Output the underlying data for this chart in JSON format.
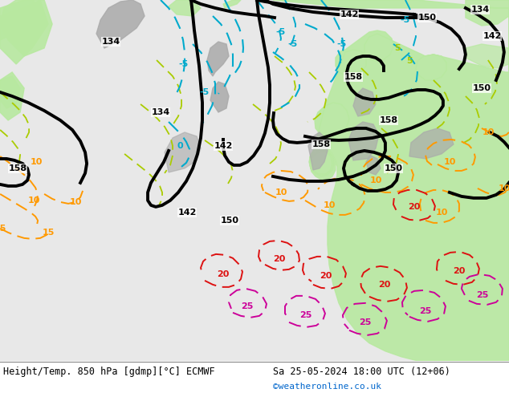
{
  "title_left": "Height/Temp. 850 hPa [gdmp][°C] ECMWF",
  "title_right": "Sa 25-05-2024 18:00 UTC (12+06)",
  "watermark": "©weatheronline.co.uk",
  "fig_width": 6.34,
  "fig_height": 4.9,
  "dpi": 100,
  "watermark_color": "#0066cc",
  "label_color": "#000000",
  "cyan": "#00aacc",
  "orange": "#ff9900",
  "magenta": "#cc0099",
  "red": "#dd1111",
  "ygreen": "#aacc00",
  "black": "#000000",
  "white": "#ffffff",
  "bg_gray": "#cccccc",
  "land_gray": "#aaaaaa",
  "light_green": "#b8e8a0",
  "med_green": "#90d870",
  "map_bg": "#e8e8e8"
}
